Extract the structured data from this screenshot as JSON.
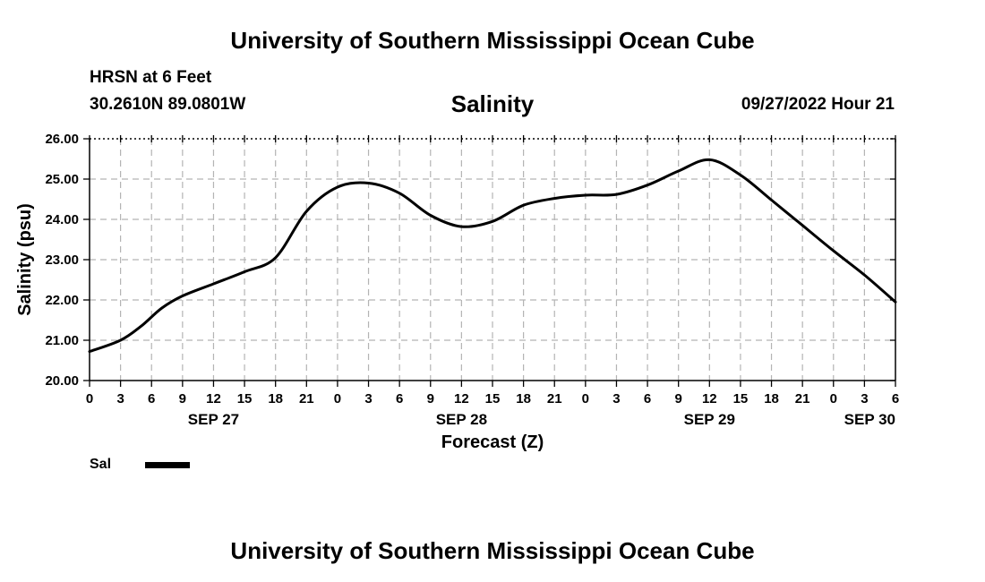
{
  "header": {
    "org_title": "University of Southern Mississippi Ocean Cube",
    "station": "HRSN at 6 Feet",
    "coords": "30.2610N  89.0801W",
    "datetime": "09/27/2022 Hour 21",
    "footer_title": "University of Southern Mississippi Ocean Cube"
  },
  "legend": {
    "label": "Sal",
    "color": "#000000"
  },
  "chart_data": {
    "type": "line",
    "title": "Salinity",
    "xlabel": "Forecast (Z)",
    "ylabel": "Salinity (psu)",
    "ylim": [
      20,
      26
    ],
    "grid": true,
    "x_unit": "hours",
    "x_ticks": [
      "0",
      "3",
      "6",
      "9",
      "12",
      "15",
      "18",
      "21",
      "0",
      "3",
      "6",
      "9",
      "12",
      "15",
      "18",
      "21",
      "0",
      "3",
      "6",
      "9",
      "12",
      "15",
      "18",
      "21",
      "0",
      "3",
      "6"
    ],
    "y_ticks": [
      "20.00",
      "21.00",
      "22.00",
      "23.00",
      "24.00",
      "25.00",
      "26.00"
    ],
    "day_labels": [
      {
        "label": "SEP 27",
        "hour": 12
      },
      {
        "label": "SEP 28",
        "hour": 36
      },
      {
        "label": "SEP 29",
        "hour": 60
      },
      {
        "label": "SEP 30",
        "hour": 78
      }
    ],
    "series": [
      {
        "name": "Sal",
        "x": [
          0,
          3,
          5,
          7,
          9,
          12,
          15,
          18,
          21,
          24,
          27,
          30,
          33,
          36,
          39,
          42,
          45,
          48,
          51,
          54,
          57,
          60,
          63,
          66,
          69,
          72,
          75,
          78
        ],
        "y": [
          20.72,
          21.0,
          21.35,
          21.8,
          22.1,
          22.4,
          22.7,
          23.05,
          24.2,
          24.8,
          24.9,
          24.65,
          24.1,
          23.82,
          23.95,
          24.35,
          24.52,
          24.6,
          24.62,
          24.85,
          25.2,
          25.48,
          25.1,
          24.48,
          23.85,
          23.22,
          22.62,
          21.95
        ]
      }
    ]
  }
}
